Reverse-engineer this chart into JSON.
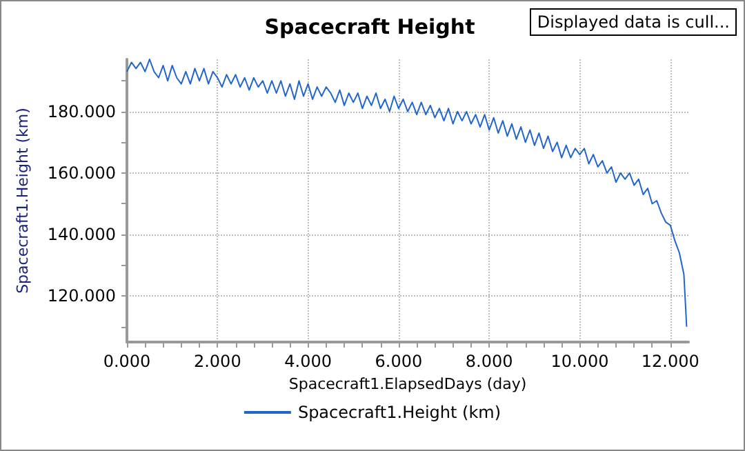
{
  "chart_data": {
    "type": "line",
    "title": "Spacecraft Height",
    "xlabel": "Spacecraft1.ElapsedDays (day)",
    "ylabel": "Spacecraft1.Height (km)",
    "annotations": [
      "Displayed data is cull..."
    ],
    "xlim": [
      0,
      12.4
    ],
    "ylim": [
      105,
      197
    ],
    "xticks": [
      {
        "value": 0,
        "label": "0.000"
      },
      {
        "value": 0.4,
        "label": null
      },
      {
        "value": 0.8,
        "label": null
      },
      {
        "value": 1.2,
        "label": null
      },
      {
        "value": 1.6,
        "label": null
      },
      {
        "value": 2,
        "label": "2.000"
      },
      {
        "value": 2.4,
        "label": null
      },
      {
        "value": 2.8,
        "label": null
      },
      {
        "value": 3.2,
        "label": null
      },
      {
        "value": 3.6,
        "label": null
      },
      {
        "value": 4,
        "label": "4.000"
      },
      {
        "value": 4.4,
        "label": null
      },
      {
        "value": 4.8,
        "label": null
      },
      {
        "value": 5.2,
        "label": null
      },
      {
        "value": 5.6,
        "label": null
      },
      {
        "value": 6,
        "label": "6.000"
      },
      {
        "value": 6.4,
        "label": null
      },
      {
        "value": 6.8,
        "label": null
      },
      {
        "value": 7.2,
        "label": null
      },
      {
        "value": 7.6,
        "label": null
      },
      {
        "value": 8,
        "label": "8.000"
      },
      {
        "value": 8.4,
        "label": null
      },
      {
        "value": 8.8,
        "label": null
      },
      {
        "value": 9.2,
        "label": null
      },
      {
        "value": 9.6,
        "label": null
      },
      {
        "value": 10,
        "label": "10.000"
      },
      {
        "value": 10.4,
        "label": null
      },
      {
        "value": 10.8,
        "label": null
      },
      {
        "value": 11.2,
        "label": null
      },
      {
        "value": 11.6,
        "label": null
      },
      {
        "value": 12,
        "label": "12.000"
      }
    ],
    "yticks": [
      {
        "value": 110,
        "label": null
      },
      {
        "value": 120,
        "label": "120.000"
      },
      {
        "value": 130,
        "label": null
      },
      {
        "value": 140,
        "label": "140.000"
      },
      {
        "value": 150,
        "label": null
      },
      {
        "value": 160,
        "label": "160.000"
      },
      {
        "value": 170,
        "label": null
      },
      {
        "value": 180,
        "label": "180.000"
      },
      {
        "value": 190,
        "label": null
      }
    ],
    "grid": true,
    "legend": "bottom",
    "marker": "none",
    "line_style": "solid",
    "x": [
      0,
      0.1,
      0.2,
      0.3,
      0.4,
      0.5,
      0.6,
      0.7,
      0.8,
      0.9,
      1,
      1.1,
      1.2,
      1.3,
      1.4,
      1.5,
      1.6,
      1.7,
      1.8,
      1.9,
      2,
      2.1,
      2.2,
      2.3,
      2.4,
      2.5,
      2.6,
      2.7,
      2.8,
      2.9,
      3,
      3.1,
      3.2,
      3.3,
      3.4,
      3.5,
      3.6,
      3.7,
      3.8,
      3.9,
      4,
      4.1,
      4.2,
      4.3,
      4.4,
      4.5,
      4.6,
      4.7,
      4.8,
      4.9,
      5,
      5.1,
      5.2,
      5.3,
      5.4,
      5.5,
      5.6,
      5.7,
      5.8,
      5.9,
      6,
      6.1,
      6.2,
      6.3,
      6.4,
      6.5,
      6.6,
      6.7,
      6.8,
      6.9,
      7,
      7.1,
      7.2,
      7.3,
      7.4,
      7.5,
      7.6,
      7.7,
      7.8,
      7.9,
      8,
      8.1,
      8.2,
      8.3,
      8.4,
      8.5,
      8.6,
      8.7,
      8.8,
      8.9,
      9,
      9.1,
      9.2,
      9.3,
      9.4,
      9.5,
      9.6,
      9.7,
      9.8,
      9.9,
      10,
      10.1,
      10.2,
      10.3,
      10.4,
      10.5,
      10.6,
      10.7,
      10.8,
      10.9,
      11,
      11.1,
      11.2,
      11.3,
      11.4,
      11.5,
      11.6,
      11.7,
      11.8,
      11.9,
      12,
      12.1,
      12.2,
      12.3,
      12.36
    ],
    "series": [
      {
        "name": "Spacecraft1.Height (km)",
        "color": "#2266cc",
        "values": [
          193,
          196,
          194,
          196,
          193,
          197,
          193,
          191,
          195,
          190,
          195,
          191,
          189,
          193,
          189,
          194,
          190,
          194,
          189,
          193,
          191,
          188,
          192,
          189,
          192,
          188,
          191,
          187,
          191,
          188,
          190,
          186,
          190,
          186,
          190,
          185,
          189,
          184,
          190,
          185,
          189,
          184,
          188,
          185,
          188,
          186,
          183,
          187,
          182,
          186,
          183,
          186,
          181,
          185,
          182,
          186,
          181,
          184,
          180,
          185,
          181,
          184,
          180,
          183,
          179,
          183,
          179,
          182,
          178,
          181,
          177,
          181,
          176,
          180,
          177,
          180,
          176,
          179,
          175,
          179,
          174,
          178,
          173,
          177,
          172,
          176,
          171,
          175,
          170,
          174,
          169,
          173,
          168,
          172,
          167,
          170,
          165,
          169,
          165,
          168,
          166,
          168,
          163,
          166,
          162,
          164,
          160,
          162,
          157,
          160,
          158,
          160,
          156,
          158,
          153,
          155,
          150,
          151,
          147,
          144,
          143,
          138,
          134,
          127,
          110
        ]
      }
    ]
  }
}
